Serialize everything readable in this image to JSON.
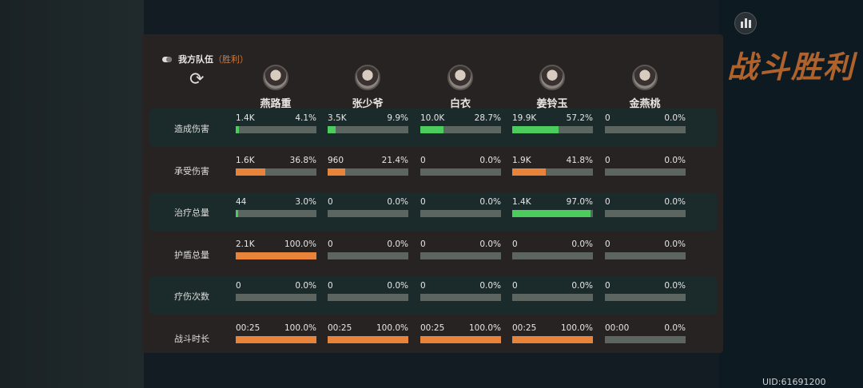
{
  "team": {
    "label": "我方队伍",
    "result": "（胜利）"
  },
  "background_title": "战斗胜利",
  "uid": "UID:61691200",
  "colors": {
    "green": "#4ccc5c",
    "orange": "#e8843a",
    "track": "#5d6561",
    "accent": "#d27b3a"
  },
  "players": [
    {
      "name": "燕路重"
    },
    {
      "name": "张少爷"
    },
    {
      "name": "白衣"
    },
    {
      "name": "姜铃玉"
    },
    {
      "name": "金燕桃"
    }
  ],
  "rows": [
    {
      "label": "造成伤害",
      "color": "green",
      "cells": [
        {
          "v": "1.4K",
          "p": "4.1%",
          "f": 4.1
        },
        {
          "v": "3.5K",
          "p": "9.9%",
          "f": 9.9
        },
        {
          "v": "10.0K",
          "p": "28.7%",
          "f": 28.7
        },
        {
          "v": "19.9K",
          "p": "57.2%",
          "f": 57.2
        },
        {
          "v": "0",
          "p": "0.0%",
          "f": 0
        }
      ]
    },
    {
      "label": "承受伤害",
      "color": "orange",
      "cells": [
        {
          "v": "1.6K",
          "p": "36.8%",
          "f": 36.8
        },
        {
          "v": "960",
          "p": "21.4%",
          "f": 21.4
        },
        {
          "v": "0",
          "p": "0.0%",
          "f": 0
        },
        {
          "v": "1.9K",
          "p": "41.8%",
          "f": 41.8
        },
        {
          "v": "0",
          "p": "0.0%",
          "f": 0
        }
      ]
    },
    {
      "label": "治疗总量",
      "color": "green",
      "cells": [
        {
          "v": "44",
          "p": "3.0%",
          "f": 3.0
        },
        {
          "v": "0",
          "p": "0.0%",
          "f": 0
        },
        {
          "v": "0",
          "p": "0.0%",
          "f": 0
        },
        {
          "v": "1.4K",
          "p": "97.0%",
          "f": 97.0
        },
        {
          "v": "0",
          "p": "0.0%",
          "f": 0
        }
      ]
    },
    {
      "label": "护盾总量",
      "color": "orange",
      "cells": [
        {
          "v": "2.1K",
          "p": "100.0%",
          "f": 100
        },
        {
          "v": "0",
          "p": "0.0%",
          "f": 0
        },
        {
          "v": "0",
          "p": "0.0%",
          "f": 0
        },
        {
          "v": "0",
          "p": "0.0%",
          "f": 0
        },
        {
          "v": "0",
          "p": "0.0%",
          "f": 0
        }
      ]
    },
    {
      "label": "疗伤次数",
      "color": "green",
      "cells": [
        {
          "v": "0",
          "p": "0.0%",
          "f": 0
        },
        {
          "v": "0",
          "p": "0.0%",
          "f": 0
        },
        {
          "v": "0",
          "p": "0.0%",
          "f": 0
        },
        {
          "v": "0",
          "p": "0.0%",
          "f": 0
        },
        {
          "v": "0",
          "p": "0.0%",
          "f": 0
        }
      ]
    },
    {
      "label": "战斗时长",
      "color": "orange",
      "cells": [
        {
          "v": "00:25",
          "p": "100.0%",
          "f": 100
        },
        {
          "v": "00:25",
          "p": "100.0%",
          "f": 100
        },
        {
          "v": "00:25",
          "p": "100.0%",
          "f": 100
        },
        {
          "v": "00:25",
          "p": "100.0%",
          "f": 100
        },
        {
          "v": "00:00",
          "p": "0.0%",
          "f": 0
        }
      ]
    }
  ]
}
